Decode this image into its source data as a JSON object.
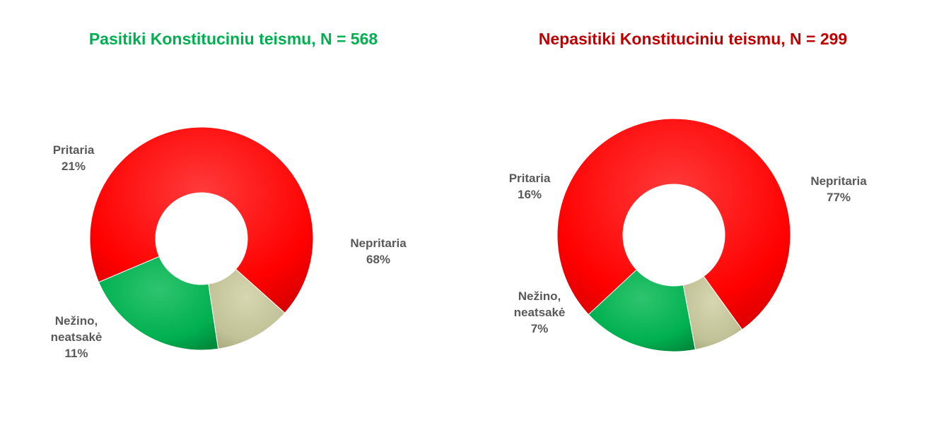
{
  "chart_data": [
    {
      "type": "pie",
      "title": "Pasitiki Konstituciniu teismu, N = 568",
      "title_color": "#00B050",
      "slices": [
        {
          "label_lines": [
            "Nepritaria",
            "68%"
          ],
          "value": 68,
          "color": "#FF0000"
        },
        {
          "label_lines": [
            "Nežino,",
            "neatsakė",
            "11%"
          ],
          "value": 11,
          "color": "#C4C49A"
        },
        {
          "label_lines": [
            "Pritaria",
            "21%"
          ],
          "value": 21,
          "color": "#00B050"
        }
      ]
    },
    {
      "type": "pie",
      "title": "Nepasitiki Konstituciniu teismu, N = 299",
      "title_color": "#C00000",
      "slices": [
        {
          "label_lines": [
            "Nepritaria",
            "77%"
          ],
          "value": 77,
          "color": "#FF0000"
        },
        {
          "label_lines": [
            "Nežino,",
            "neatsakė",
            "7%"
          ],
          "value": 7,
          "color": "#C4C49A"
        },
        {
          "label_lines": [
            "Pritaria",
            "16%"
          ],
          "value": 16,
          "color": "#00B050"
        }
      ]
    }
  ]
}
